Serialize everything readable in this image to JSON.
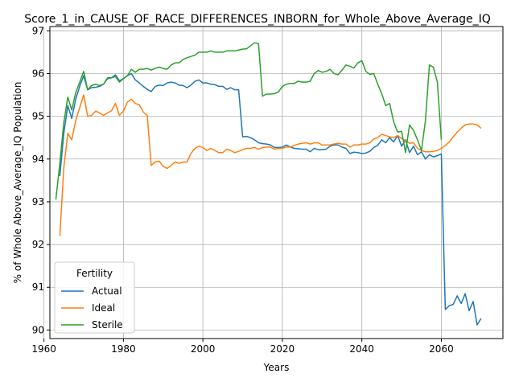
{
  "chart_data": {
    "type": "line",
    "title": "Score_1_in_CAUSE_OF_RACE_DIFFERENCES_INBORN_for_Whole_Above_Average_IQ",
    "xlabel": "Years",
    "ylabel": "% of Whole Above_Average_IQ Population",
    "xlim": [
      1961.5,
      2075.5
    ],
    "ylim": [
      89.8,
      97.1
    ],
    "xticks": [
      "1960",
      "1980",
      "2000",
      "2020",
      "2040",
      "2060"
    ],
    "yticks": [
      "90",
      "91",
      "92",
      "93",
      "94",
      "95",
      "96",
      "97"
    ],
    "grid": true,
    "legend": {
      "title": "Fertility",
      "position": "lower-left"
    },
    "series": [
      {
        "name": "Actual",
        "color": "#1f77b4",
        "points": [
          [
            1964,
            93.6
          ],
          [
            1965,
            94.6
          ],
          [
            1966,
            95.25
          ],
          [
            1967,
            94.95
          ],
          [
            1968,
            95.4
          ],
          [
            1969,
            95.7
          ],
          [
            1970,
            95.95
          ],
          [
            1971,
            95.62
          ],
          [
            1972,
            95.67
          ],
          [
            1973,
            95.68
          ],
          [
            1974,
            95.7
          ],
          [
            1975,
            95.75
          ],
          [
            1976,
            95.88
          ],
          [
            1977,
            95.9
          ],
          [
            1978,
            95.97
          ],
          [
            1979,
            95.83
          ],
          [
            1980,
            95.88
          ],
          [
            1981,
            95.95
          ],
          [
            1982,
            96.0
          ],
          [
            1983,
            95.85
          ],
          [
            1984,
            95.78
          ],
          [
            1985,
            95.7
          ],
          [
            1986,
            95.63
          ],
          [
            1987,
            95.58
          ],
          [
            1988,
            95.7
          ],
          [
            1989,
            95.73
          ],
          [
            1990,
            95.72
          ],
          [
            1991,
            95.78
          ],
          [
            1992,
            95.8
          ],
          [
            1993,
            95.78
          ],
          [
            1994,
            95.73
          ],
          [
            1995,
            95.72
          ],
          [
            1996,
            95.67
          ],
          [
            1997,
            95.73
          ],
          [
            1998,
            95.82
          ],
          [
            1999,
            95.85
          ],
          [
            2000,
            95.78
          ],
          [
            2001,
            95.78
          ],
          [
            2002,
            95.75
          ],
          [
            2003,
            95.74
          ],
          [
            2004,
            95.7
          ],
          [
            2005,
            95.7
          ],
          [
            2006,
            95.63
          ],
          [
            2007,
            95.67
          ],
          [
            2008,
            95.62
          ],
          [
            2009,
            95.62
          ],
          [
            2010,
            94.52
          ],
          [
            2011,
            94.53
          ],
          [
            2012,
            94.5
          ],
          [
            2013,
            94.45
          ],
          [
            2014,
            94.38
          ],
          [
            2015,
            94.36
          ],
          [
            2016,
            94.35
          ],
          [
            2017,
            94.33
          ],
          [
            2018,
            94.27
          ],
          [
            2019,
            94.27
          ],
          [
            2020,
            94.28
          ],
          [
            2021,
            94.33
          ],
          [
            2022,
            94.28
          ],
          [
            2023,
            94.25
          ],
          [
            2024,
            94.24
          ],
          [
            2025,
            94.23
          ],
          [
            2026,
            94.23
          ],
          [
            2027,
            94.17
          ],
          [
            2028,
            94.25
          ],
          [
            2029,
            94.22
          ],
          [
            2030,
            94.22
          ],
          [
            2031,
            94.23
          ],
          [
            2032,
            94.3
          ],
          [
            2033,
            94.33
          ],
          [
            2034,
            94.33
          ],
          [
            2035,
            94.28
          ],
          [
            2036,
            94.25
          ],
          [
            2037,
            94.13
          ],
          [
            2038,
            94.16
          ],
          [
            2039,
            94.15
          ],
          [
            2040,
            94.13
          ],
          [
            2041,
            94.14
          ],
          [
            2042,
            94.18
          ],
          [
            2043,
            94.27
          ],
          [
            2044,
            94.32
          ],
          [
            2045,
            94.45
          ],
          [
            2046,
            94.38
          ],
          [
            2047,
            94.5
          ],
          [
            2048,
            94.4
          ],
          [
            2049,
            94.55
          ],
          [
            2050,
            94.3
          ],
          [
            2051,
            94.45
          ],
          [
            2052,
            94.15
          ],
          [
            2053,
            94.3
          ],
          [
            2054,
            94.1
          ],
          [
            2055,
            94.17
          ],
          [
            2056,
            94.0
          ],
          [
            2057,
            94.1
          ],
          [
            2058,
            94.05
          ],
          [
            2059,
            94.08
          ],
          [
            2060,
            94.12
          ],
          [
            2061,
            90.48
          ],
          [
            2062,
            90.57
          ],
          [
            2063,
            90.6
          ],
          [
            2064,
            90.8
          ],
          [
            2065,
            90.62
          ],
          [
            2066,
            90.85
          ],
          [
            2067,
            90.45
          ],
          [
            2068,
            90.67
          ],
          [
            2069,
            90.12
          ],
          [
            2070,
            90.27
          ]
        ]
      },
      {
        "name": "Ideal",
        "color": "#ff7f0e",
        "points": [
          [
            1964,
            92.2
          ],
          [
            1965,
            93.8
          ],
          [
            1966,
            94.6
          ],
          [
            1967,
            94.45
          ],
          [
            1968,
            94.9
          ],
          [
            1969,
            95.2
          ],
          [
            1970,
            95.5
          ],
          [
            1971,
            95.0
          ],
          [
            1972,
            95.02
          ],
          [
            1973,
            95.12
          ],
          [
            1974,
            95.08
          ],
          [
            1975,
            95.02
          ],
          [
            1976,
            95.08
          ],
          [
            1977,
            95.13
          ],
          [
            1978,
            95.3
          ],
          [
            1979,
            95.02
          ],
          [
            1980,
            95.12
          ],
          [
            1981,
            95.33
          ],
          [
            1982,
            95.4
          ],
          [
            1983,
            95.3
          ],
          [
            1984,
            95.27
          ],
          [
            1985,
            95.1
          ],
          [
            1986,
            95.02
          ],
          [
            1987,
            93.85
          ],
          [
            1988,
            93.93
          ],
          [
            1989,
            93.95
          ],
          [
            1990,
            93.83
          ],
          [
            1991,
            93.78
          ],
          [
            1992,
            93.85
          ],
          [
            1993,
            93.93
          ],
          [
            1994,
            93.9
          ],
          [
            1995,
            93.93
          ],
          [
            1996,
            93.93
          ],
          [
            1997,
            94.13
          ],
          [
            1998,
            94.25
          ],
          [
            1999,
            94.3
          ],
          [
            2000,
            94.27
          ],
          [
            2001,
            94.2
          ],
          [
            2002,
            94.25
          ],
          [
            2003,
            94.2
          ],
          [
            2004,
            94.15
          ],
          [
            2005,
            94.15
          ],
          [
            2006,
            94.23
          ],
          [
            2007,
            94.2
          ],
          [
            2008,
            94.15
          ],
          [
            2009,
            94.18
          ],
          [
            2010,
            94.22
          ],
          [
            2011,
            94.25
          ],
          [
            2012,
            94.25
          ],
          [
            2013,
            94.27
          ],
          [
            2014,
            94.23
          ],
          [
            2015,
            94.27
          ],
          [
            2016,
            94.28
          ],
          [
            2017,
            94.28
          ],
          [
            2018,
            94.23
          ],
          [
            2019,
            94.25
          ],
          [
            2020,
            94.25
          ],
          [
            2021,
            94.28
          ],
          [
            2022,
            94.28
          ],
          [
            2023,
            94.32
          ],
          [
            2024,
            94.35
          ],
          [
            2025,
            94.37
          ],
          [
            2026,
            94.38
          ],
          [
            2027,
            94.35
          ],
          [
            2028,
            94.38
          ],
          [
            2029,
            94.38
          ],
          [
            2030,
            94.33
          ],
          [
            2031,
            94.33
          ],
          [
            2032,
            94.33
          ],
          [
            2033,
            94.35
          ],
          [
            2034,
            94.37
          ],
          [
            2035,
            94.35
          ],
          [
            2036,
            94.35
          ],
          [
            2037,
            94.28
          ],
          [
            2038,
            94.33
          ],
          [
            2039,
            94.33
          ],
          [
            2040,
            94.35
          ],
          [
            2041,
            94.35
          ],
          [
            2042,
            94.38
          ],
          [
            2043,
            94.47
          ],
          [
            2044,
            94.5
          ],
          [
            2045,
            94.58
          ],
          [
            2046,
            94.55
          ],
          [
            2047,
            94.52
          ],
          [
            2048,
            94.5
          ],
          [
            2049,
            94.55
          ],
          [
            2050,
            94.48
          ],
          [
            2051,
            94.43
          ],
          [
            2052,
            94.37
          ],
          [
            2053,
            94.38
          ],
          [
            2054,
            94.25
          ],
          [
            2055,
            94.2
          ],
          [
            2056,
            94.17
          ],
          [
            2057,
            94.17
          ],
          [
            2058,
            94.18
          ],
          [
            2059,
            94.2
          ],
          [
            2060,
            94.25
          ],
          [
            2061,
            94.32
          ],
          [
            2062,
            94.4
          ],
          [
            2063,
            94.52
          ],
          [
            2064,
            94.63
          ],
          [
            2065,
            94.72
          ],
          [
            2066,
            94.8
          ],
          [
            2067,
            94.82
          ],
          [
            2068,
            94.82
          ],
          [
            2069,
            94.8
          ],
          [
            2070,
            94.72
          ]
        ]
      },
      {
        "name": "Sterile",
        "color": "#2ca02c",
        "points": [
          [
            1963,
            93.05
          ],
          [
            1964,
            93.9
          ],
          [
            1965,
            94.85
          ],
          [
            1966,
            95.45
          ],
          [
            1967,
            95.15
          ],
          [
            1968,
            95.55
          ],
          [
            1969,
            95.8
          ],
          [
            1970,
            96.05
          ],
          [
            1971,
            95.62
          ],
          [
            1972,
            95.72
          ],
          [
            1973,
            95.75
          ],
          [
            1974,
            95.72
          ],
          [
            1975,
            95.75
          ],
          [
            1976,
            95.9
          ],
          [
            1977,
            95.9
          ],
          [
            1978,
            95.93
          ],
          [
            1979,
            95.8
          ],
          [
            1980,
            95.88
          ],
          [
            1981,
            95.95
          ],
          [
            1982,
            96.1
          ],
          [
            1983,
            96.03
          ],
          [
            1984,
            96.1
          ],
          [
            1985,
            96.1
          ],
          [
            1986,
            96.12
          ],
          [
            1987,
            96.08
          ],
          [
            1988,
            96.12
          ],
          [
            1989,
            96.15
          ],
          [
            1990,
            96.12
          ],
          [
            1991,
            96.1
          ],
          [
            1992,
            96.2
          ],
          [
            1993,
            96.25
          ],
          [
            1994,
            96.25
          ],
          [
            1995,
            96.33
          ],
          [
            1996,
            96.37
          ],
          [
            1997,
            96.4
          ],
          [
            1998,
            96.43
          ],
          [
            1999,
            96.5
          ],
          [
            2000,
            96.5
          ],
          [
            2001,
            96.5
          ],
          [
            2002,
            96.53
          ],
          [
            2003,
            96.5
          ],
          [
            2004,
            96.5
          ],
          [
            2005,
            96.5
          ],
          [
            2006,
            96.53
          ],
          [
            2007,
            96.53
          ],
          [
            2008,
            96.53
          ],
          [
            2009,
            96.55
          ],
          [
            2010,
            96.57
          ],
          [
            2011,
            96.58
          ],
          [
            2012,
            96.65
          ],
          [
            2013,
            96.72
          ],
          [
            2014,
            96.7
          ],
          [
            2015,
            95.47
          ],
          [
            2016,
            95.52
          ],
          [
            2017,
            95.52
          ],
          [
            2018,
            95.53
          ],
          [
            2019,
            95.57
          ],
          [
            2020,
            95.7
          ],
          [
            2021,
            95.75
          ],
          [
            2022,
            95.77
          ],
          [
            2023,
            95.77
          ],
          [
            2024,
            95.82
          ],
          [
            2025,
            95.8
          ],
          [
            2026,
            95.8
          ],
          [
            2027,
            95.82
          ],
          [
            2028,
            96.0
          ],
          [
            2029,
            96.07
          ],
          [
            2030,
            96.03
          ],
          [
            2031,
            96.05
          ],
          [
            2032,
            96.1
          ],
          [
            2033,
            96.0
          ],
          [
            2034,
            95.97
          ],
          [
            2035,
            96.08
          ],
          [
            2036,
            96.2
          ],
          [
            2037,
            96.17
          ],
          [
            2038,
            96.13
          ],
          [
            2039,
            96.25
          ],
          [
            2040,
            96.3
          ],
          [
            2041,
            96.05
          ],
          [
            2042,
            95.98
          ],
          [
            2043,
            96.0
          ],
          [
            2044,
            95.75
          ],
          [
            2045,
            95.53
          ],
          [
            2046,
            95.25
          ],
          [
            2047,
            95.3
          ],
          [
            2048,
            94.87
          ],
          [
            2049,
            94.63
          ],
          [
            2050,
            94.65
          ],
          [
            2051,
            94.15
          ],
          [
            2052,
            94.8
          ],
          [
            2053,
            94.67
          ],
          [
            2054,
            94.45
          ],
          [
            2055,
            94.2
          ],
          [
            2056,
            94.9
          ],
          [
            2057,
            96.2
          ],
          [
            2058,
            96.15
          ],
          [
            2059,
            95.8
          ],
          [
            2060,
            94.45
          ]
        ]
      }
    ]
  }
}
